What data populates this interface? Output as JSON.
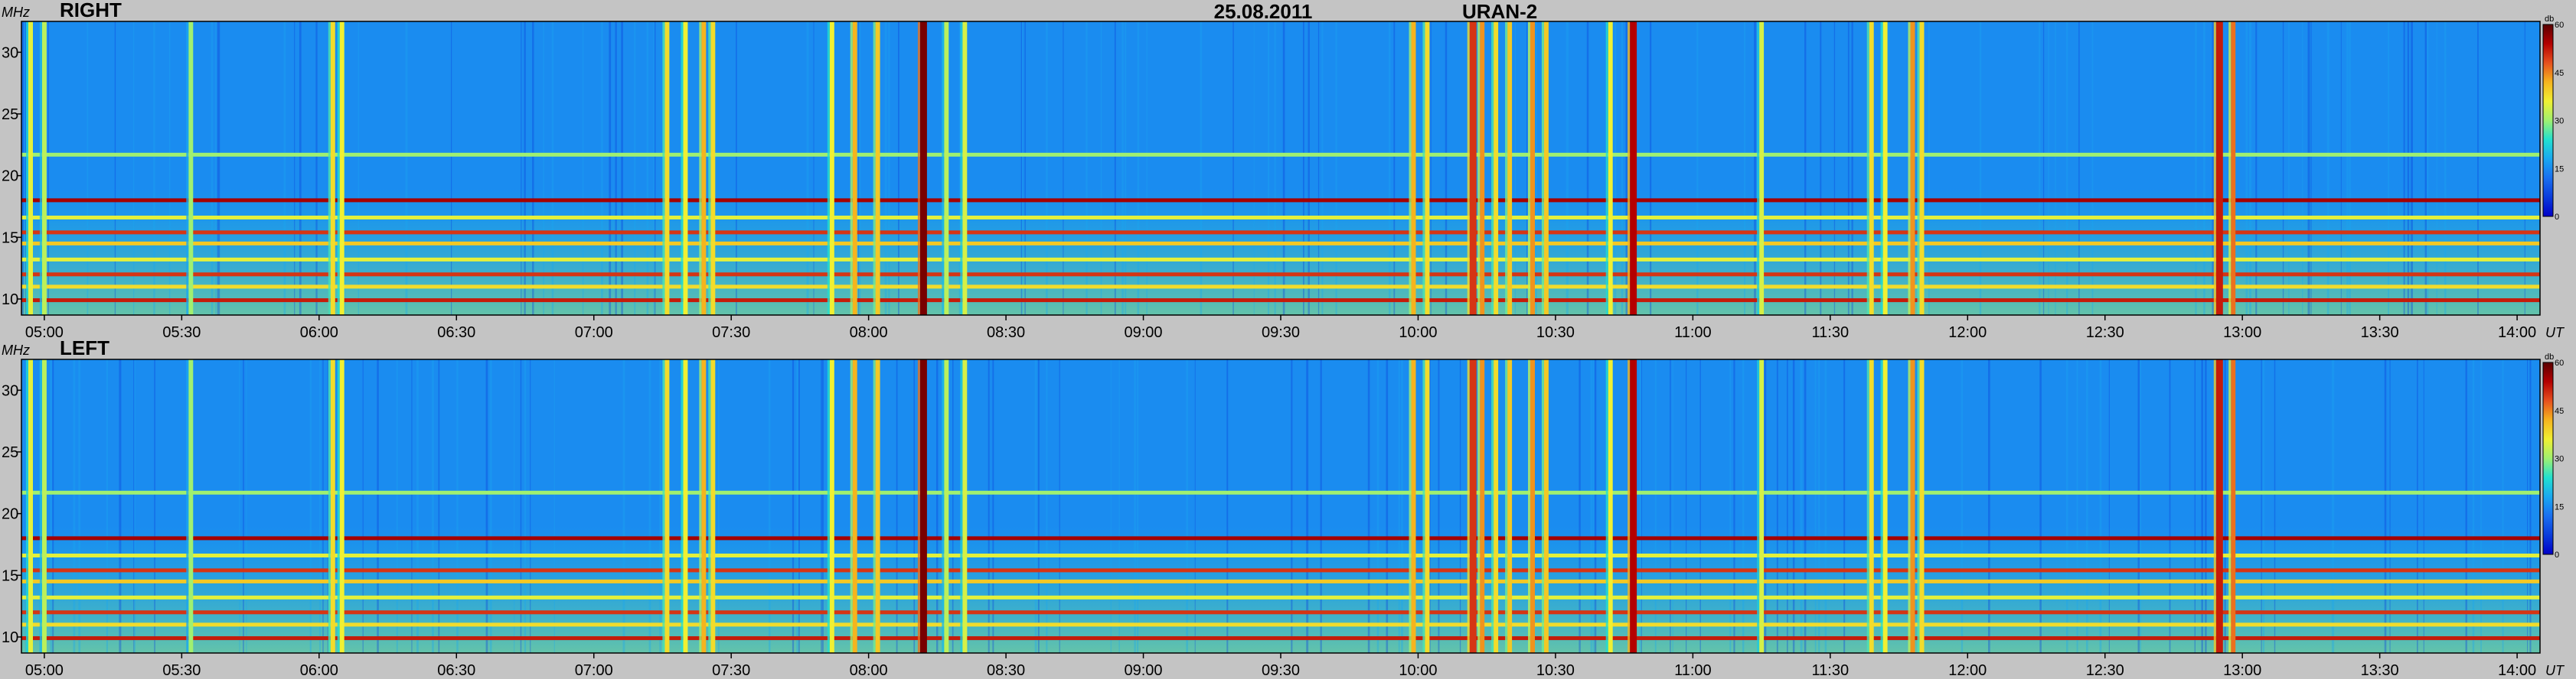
{
  "header": {
    "date": "25.08.2011",
    "instrument": "URAN-2"
  },
  "colors": {
    "background": "#c4c4c4",
    "colormap": [
      "#0000c8",
      "#0a3cdc",
      "#1a6ff0",
      "#1aa8f0",
      "#22e0d0",
      "#a0f070",
      "#f0f032",
      "#f5b41e",
      "#e6501e",
      "#b40000",
      "#5a0000"
    ]
  },
  "chart_data": [
    {
      "type": "heatmap",
      "panel_label": "RIGHT",
      "x_unit": "UT",
      "y_unit": "MHz",
      "x_range": [
        "04:55",
        "14:05"
      ],
      "y_range": [
        8.7,
        32.5
      ],
      "x_ticks": [
        "05:00",
        "05:30",
        "06:00",
        "06:30",
        "07:00",
        "07:30",
        "08:00",
        "08:30",
        "09:00",
        "09:30",
        "10:00",
        "10:30",
        "11:00",
        "11:30",
        "12:00",
        "12:30",
        "13:00",
        "13:30",
        "14:00"
      ],
      "y_ticks": [
        10,
        15,
        20,
        25,
        30
      ],
      "colorbar": {
        "label": "db",
        "ticks": [
          0,
          15,
          30,
          45,
          60
        ],
        "range": [
          0,
          60
        ]
      },
      "background_db": 15,
      "horizontal_bands": [
        {
          "freq": 21.7,
          "db": 30,
          "from": "04:55",
          "to": "14:05"
        },
        {
          "freq": 18.0,
          "db": 55,
          "from": "04:55",
          "to": "14:05"
        },
        {
          "freq": 16.6,
          "db": 35,
          "from": "04:55",
          "to": "14:05"
        },
        {
          "freq": 15.4,
          "db": 50,
          "from": "04:55",
          "to": "14:05"
        },
        {
          "freq": 14.5,
          "db": 40,
          "from": "04:55",
          "to": "14:05"
        },
        {
          "freq": 13.2,
          "db": 35,
          "from": "04:55",
          "to": "14:05"
        },
        {
          "freq": 12.0,
          "db": 50,
          "from": "04:55",
          "to": "14:05"
        },
        {
          "freq": 11.0,
          "db": 38,
          "from": "04:55",
          "to": "14:05"
        },
        {
          "freq": 9.9,
          "db": 52,
          "from": "04:55",
          "to": "14:05"
        }
      ],
      "vertical_bursts": [
        {
          "time": "04:57",
          "db": 35
        },
        {
          "time": "05:00",
          "db": 32
        },
        {
          "time": "05:32",
          "db": 30
        },
        {
          "time": "06:03",
          "db": 38
        },
        {
          "time": "06:05",
          "db": 36
        },
        {
          "time": "07:16",
          "db": 38
        },
        {
          "time": "07:20",
          "db": 36
        },
        {
          "time": "07:24",
          "db": 42
        },
        {
          "time": "07:26",
          "db": 38
        },
        {
          "time": "07:52",
          "db": 36
        },
        {
          "time": "07:57",
          "db": 42
        },
        {
          "time": "08:02",
          "db": 40
        },
        {
          "time": "08:12",
          "db": 58
        },
        {
          "time": "08:17",
          "db": 32
        },
        {
          "time": "08:21",
          "db": 34
        },
        {
          "time": "09:59",
          "db": 42
        },
        {
          "time": "10:02",
          "db": 38
        },
        {
          "time": "10:12",
          "db": 50
        },
        {
          "time": "10:14",
          "db": 44
        },
        {
          "time": "10:17",
          "db": 38
        },
        {
          "time": "10:20",
          "db": 40
        },
        {
          "time": "10:25",
          "db": 44
        },
        {
          "time": "10:28",
          "db": 40
        },
        {
          "time": "10:42",
          "db": 36
        },
        {
          "time": "10:47",
          "db": 54
        },
        {
          "time": "11:15",
          "db": 34
        },
        {
          "time": "11:39",
          "db": 38
        },
        {
          "time": "11:42",
          "db": 36
        },
        {
          "time": "11:48",
          "db": 44
        },
        {
          "time": "11:50",
          "db": 38
        },
        {
          "time": "12:55",
          "db": 52
        },
        {
          "time": "12:58",
          "db": 46
        }
      ]
    },
    {
      "type": "heatmap",
      "panel_label": "LEFT",
      "x_unit": "UT",
      "y_unit": "MHz",
      "x_range": [
        "04:55",
        "14:05"
      ],
      "y_range": [
        8.7,
        32.5
      ],
      "x_ticks": [
        "05:00",
        "05:30",
        "06:00",
        "06:30",
        "07:00",
        "07:30",
        "08:00",
        "08:30",
        "09:00",
        "09:30",
        "10:00",
        "10:30",
        "11:00",
        "11:30",
        "12:00",
        "12:30",
        "13:00",
        "13:30",
        "14:00"
      ],
      "y_ticks": [
        10,
        15,
        20,
        25,
        30
      ],
      "colorbar": {
        "label": "db",
        "ticks": [
          0,
          15,
          30,
          45,
          60
        ],
        "range": [
          0,
          60
        ]
      },
      "background_db": 15,
      "horizontal_bands": [
        {
          "freq": 21.7,
          "db": 30,
          "from": "04:55",
          "to": "14:05"
        },
        {
          "freq": 18.0,
          "db": 55,
          "from": "04:55",
          "to": "14:05"
        },
        {
          "freq": 16.6,
          "db": 35,
          "from": "04:55",
          "to": "14:05"
        },
        {
          "freq": 15.4,
          "db": 50,
          "from": "04:55",
          "to": "14:05"
        },
        {
          "freq": 14.5,
          "db": 40,
          "from": "04:55",
          "to": "14:05"
        },
        {
          "freq": 13.2,
          "db": 35,
          "from": "04:55",
          "to": "14:05"
        },
        {
          "freq": 12.0,
          "db": 50,
          "from": "04:55",
          "to": "14:05"
        },
        {
          "freq": 11.0,
          "db": 38,
          "from": "04:55",
          "to": "14:05"
        },
        {
          "freq": 9.9,
          "db": 52,
          "from": "04:55",
          "to": "14:05"
        }
      ],
      "vertical_bursts": [
        {
          "time": "04:57",
          "db": 35
        },
        {
          "time": "05:00",
          "db": 32
        },
        {
          "time": "05:32",
          "db": 30
        },
        {
          "time": "06:03",
          "db": 38
        },
        {
          "time": "06:05",
          "db": 36
        },
        {
          "time": "07:16",
          "db": 38
        },
        {
          "time": "07:20",
          "db": 36
        },
        {
          "time": "07:24",
          "db": 42
        },
        {
          "time": "07:26",
          "db": 38
        },
        {
          "time": "07:52",
          "db": 36
        },
        {
          "time": "07:57",
          "db": 42
        },
        {
          "time": "08:02",
          "db": 40
        },
        {
          "time": "08:12",
          "db": 58
        },
        {
          "time": "08:17",
          "db": 32
        },
        {
          "time": "08:21",
          "db": 34
        },
        {
          "time": "09:59",
          "db": 42
        },
        {
          "time": "10:02",
          "db": 38
        },
        {
          "time": "10:12",
          "db": 50
        },
        {
          "time": "10:14",
          "db": 44
        },
        {
          "time": "10:17",
          "db": 38
        },
        {
          "time": "10:20",
          "db": 40
        },
        {
          "time": "10:25",
          "db": 44
        },
        {
          "time": "10:28",
          "db": 40
        },
        {
          "time": "10:42",
          "db": 36
        },
        {
          "time": "10:47",
          "db": 54
        },
        {
          "time": "11:15",
          "db": 34
        },
        {
          "time": "11:39",
          "db": 38
        },
        {
          "time": "11:42",
          "db": 36
        },
        {
          "time": "11:48",
          "db": 44
        },
        {
          "time": "11:50",
          "db": 38
        },
        {
          "time": "12:55",
          "db": 52
        },
        {
          "time": "12:58",
          "db": 46
        }
      ]
    }
  ]
}
